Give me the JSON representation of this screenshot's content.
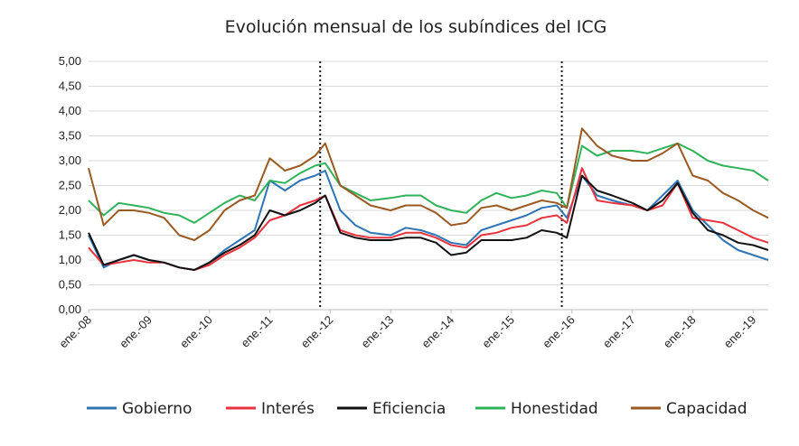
{
  "chart_data": {
    "type": "line",
    "title": "Evolución mensual de los subíndices del ICG",
    "xlabel": "",
    "ylabel": "",
    "ylim": [
      0,
      5
    ],
    "yticks": [
      "0,00",
      "0,50",
      "1,00",
      "1,50",
      "2,00",
      "2,50",
      "3,00",
      "3,50",
      "4,00",
      "4,50",
      "5,00"
    ],
    "xticks": [
      "ene.-08",
      "ene.-09",
      "ene.-10",
      "ene.-11",
      "ene.-12",
      "ene.-13",
      "ene.-14",
      "ene.-15",
      "ene.-16",
      "ene.-17",
      "ene.-18",
      "ene.-19"
    ],
    "x_start": "2008-01",
    "x_end": "2019-04",
    "grid": true,
    "legend_position": "bottom",
    "vertical_markers": [
      "2011-11",
      "2015-11"
    ],
    "colors": {
      "Gobierno": "#2e75b6",
      "Interés": "#e8323c",
      "Eficiencia": "#111111",
      "Honestidad": "#2fb35a",
      "Capacidad": "#9a5a22"
    },
    "series": [
      {
        "name": "Gobierno",
        "months": [
          "2008-01",
          "2008-04",
          "2008-07",
          "2008-10",
          "2009-01",
          "2009-04",
          "2009-07",
          "2009-10",
          "2010-01",
          "2010-04",
          "2010-07",
          "2010-10",
          "2011-01",
          "2011-04",
          "2011-07",
          "2011-10",
          "2011-12",
          "2012-03",
          "2012-06",
          "2012-09",
          "2013-01",
          "2013-04",
          "2013-07",
          "2013-10",
          "2014-01",
          "2014-04",
          "2014-07",
          "2014-10",
          "2015-01",
          "2015-04",
          "2015-07",
          "2015-10",
          "2015-12",
          "2016-03",
          "2016-06",
          "2016-09",
          "2017-01",
          "2017-04",
          "2017-07",
          "2017-10",
          "2018-01",
          "2018-04",
          "2018-07",
          "2018-10",
          "2019-01",
          "2019-04"
        ],
        "values": [
          1.5,
          0.85,
          1.0,
          1.1,
          1.0,
          0.95,
          0.85,
          0.8,
          0.95,
          1.2,
          1.4,
          1.6,
          2.6,
          2.4,
          2.6,
          2.7,
          2.8,
          2.0,
          1.7,
          1.55,
          1.5,
          1.65,
          1.6,
          1.5,
          1.35,
          1.3,
          1.6,
          1.7,
          1.8,
          1.9,
          2.05,
          2.1,
          1.85,
          2.7,
          2.3,
          2.2,
          2.1,
          2.0,
          2.3,
          2.6,
          2.0,
          1.7,
          1.4,
          1.2,
          1.1,
          1.0
        ]
      },
      {
        "name": "Interés",
        "months": [
          "2008-01",
          "2008-04",
          "2008-07",
          "2008-10",
          "2009-01",
          "2009-04",
          "2009-07",
          "2009-10",
          "2010-01",
          "2010-04",
          "2010-07",
          "2010-10",
          "2011-01",
          "2011-04",
          "2011-07",
          "2011-10",
          "2011-12",
          "2012-03",
          "2012-06",
          "2012-09",
          "2013-01",
          "2013-04",
          "2013-07",
          "2013-10",
          "2014-01",
          "2014-04",
          "2014-07",
          "2014-10",
          "2015-01",
          "2015-04",
          "2015-07",
          "2015-10",
          "2015-12",
          "2016-03",
          "2016-06",
          "2016-09",
          "2017-01",
          "2017-04",
          "2017-07",
          "2017-10",
          "2018-01",
          "2018-04",
          "2018-07",
          "2018-10",
          "2019-01",
          "2019-04"
        ],
        "values": [
          1.25,
          0.9,
          0.95,
          1.0,
          0.95,
          0.95,
          0.85,
          0.8,
          0.9,
          1.1,
          1.25,
          1.45,
          1.8,
          1.9,
          2.1,
          2.2,
          2.3,
          1.6,
          1.5,
          1.45,
          1.45,
          1.55,
          1.55,
          1.45,
          1.3,
          1.25,
          1.5,
          1.55,
          1.65,
          1.7,
          1.85,
          1.9,
          1.75,
          2.85,
          2.2,
          2.15,
          2.1,
          2.0,
          2.1,
          2.55,
          1.85,
          1.8,
          1.75,
          1.6,
          1.45,
          1.35
        ]
      },
      {
        "name": "Eficiencia",
        "months": [
          "2008-01",
          "2008-04",
          "2008-07",
          "2008-10",
          "2009-01",
          "2009-04",
          "2009-07",
          "2009-10",
          "2010-01",
          "2010-04",
          "2010-07",
          "2010-10",
          "2011-01",
          "2011-04",
          "2011-07",
          "2011-10",
          "2011-12",
          "2012-03",
          "2012-06",
          "2012-09",
          "2013-01",
          "2013-04",
          "2013-07",
          "2013-10",
          "2014-01",
          "2014-04",
          "2014-07",
          "2014-10",
          "2015-01",
          "2015-04",
          "2015-07",
          "2015-10",
          "2015-12",
          "2016-03",
          "2016-06",
          "2016-09",
          "2017-01",
          "2017-04",
          "2017-07",
          "2017-10",
          "2018-01",
          "2018-04",
          "2018-07",
          "2018-10",
          "2019-01",
          "2019-04"
        ],
        "values": [
          1.55,
          0.9,
          1.0,
          1.1,
          1.0,
          0.95,
          0.85,
          0.8,
          0.95,
          1.15,
          1.3,
          1.5,
          2.0,
          1.9,
          2.0,
          2.15,
          2.3,
          1.55,
          1.45,
          1.4,
          1.4,
          1.45,
          1.45,
          1.35,
          1.1,
          1.15,
          1.4,
          1.4,
          1.4,
          1.45,
          1.6,
          1.55,
          1.45,
          2.7,
          2.4,
          2.3,
          2.15,
          2.0,
          2.2,
          2.55,
          1.95,
          1.6,
          1.5,
          1.35,
          1.3,
          1.2
        ]
      },
      {
        "name": "Honestidad",
        "months": [
          "2008-01",
          "2008-04",
          "2008-07",
          "2008-10",
          "2009-01",
          "2009-04",
          "2009-07",
          "2009-10",
          "2010-01",
          "2010-04",
          "2010-07",
          "2010-10",
          "2011-01",
          "2011-04",
          "2011-07",
          "2011-10",
          "2011-12",
          "2012-03",
          "2012-06",
          "2012-09",
          "2013-01",
          "2013-04",
          "2013-07",
          "2013-10",
          "2014-01",
          "2014-04",
          "2014-07",
          "2014-10",
          "2015-01",
          "2015-04",
          "2015-07",
          "2015-10",
          "2015-12",
          "2016-03",
          "2016-06",
          "2016-09",
          "2017-01",
          "2017-04",
          "2017-07",
          "2017-10",
          "2018-01",
          "2018-04",
          "2018-07",
          "2018-10",
          "2019-01",
          "2019-04"
        ],
        "values": [
          2.2,
          1.9,
          2.15,
          2.1,
          2.05,
          1.95,
          1.9,
          1.75,
          1.95,
          2.15,
          2.3,
          2.2,
          2.6,
          2.55,
          2.75,
          2.9,
          2.95,
          2.5,
          2.35,
          2.2,
          2.25,
          2.3,
          2.3,
          2.1,
          2.0,
          1.95,
          2.2,
          2.35,
          2.25,
          2.3,
          2.4,
          2.35,
          2.05,
          3.3,
          3.1,
          3.2,
          3.2,
          3.15,
          3.25,
          3.35,
          3.2,
          3.0,
          2.9,
          2.85,
          2.8,
          2.6
        ]
      },
      {
        "name": "Capacidad",
        "months": [
          "2008-01",
          "2008-04",
          "2008-07",
          "2008-10",
          "2009-01",
          "2009-04",
          "2009-07",
          "2009-10",
          "2010-01",
          "2010-04",
          "2010-07",
          "2010-10",
          "2011-01",
          "2011-04",
          "2011-07",
          "2011-10",
          "2011-12",
          "2012-03",
          "2012-06",
          "2012-09",
          "2013-01",
          "2013-04",
          "2013-07",
          "2013-10",
          "2014-01",
          "2014-04",
          "2014-07",
          "2014-10",
          "2015-01",
          "2015-04",
          "2015-07",
          "2015-10",
          "2015-12",
          "2016-03",
          "2016-06",
          "2016-09",
          "2017-01",
          "2017-04",
          "2017-07",
          "2017-10",
          "2018-01",
          "2018-04",
          "2018-07",
          "2018-10",
          "2019-01",
          "2019-04"
        ],
        "values": [
          2.85,
          1.7,
          2.0,
          2.0,
          1.95,
          1.85,
          1.5,
          1.4,
          1.6,
          2.0,
          2.2,
          2.3,
          3.05,
          2.8,
          2.9,
          3.1,
          3.35,
          2.5,
          2.3,
          2.1,
          2.0,
          2.1,
          2.1,
          1.95,
          1.7,
          1.75,
          2.05,
          2.1,
          2.0,
          2.1,
          2.2,
          2.15,
          2.05,
          3.65,
          3.3,
          3.1,
          3.0,
          3.0,
          3.15,
          3.35,
          2.7,
          2.6,
          2.35,
          2.2,
          2.0,
          1.85
        ]
      }
    ]
  }
}
